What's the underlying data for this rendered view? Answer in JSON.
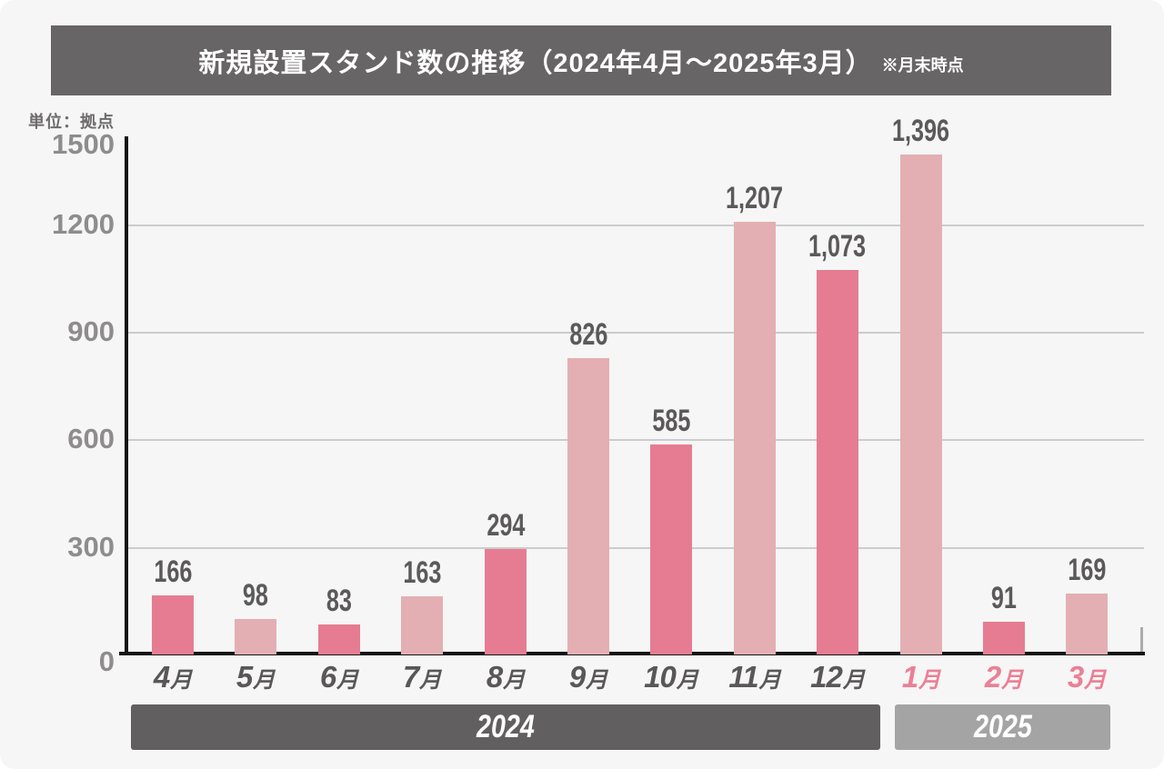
{
  "title": {
    "text": "新規設置スタンド数の推移（2024年4月〜2025年3月）",
    "note": "※月末時点"
  },
  "unit_label": "単位：拠点",
  "chart_data": {
    "type": "bar",
    "title": "新規設置スタンド数の推移（2024年4月〜2025年3月）※月末時点",
    "ylabel": "単位：拠点",
    "xlabel": "",
    "ylim": [
      0,
      1500
    ],
    "y_ticks": [
      1500,
      1200,
      900,
      600,
      300,
      0
    ],
    "grid": true,
    "legend": false,
    "categories": [
      "4月",
      "5月",
      "6月",
      "7月",
      "8月",
      "9月",
      "10月",
      "11月",
      "12月",
      "1月",
      "2月",
      "3月"
    ],
    "values": [
      166,
      98,
      83,
      163,
      294,
      826,
      585,
      1207,
      1073,
      1396,
      91,
      169
    ],
    "value_labels": [
      "166",
      "98",
      "83",
      "163",
      "294",
      "826",
      "585",
      "1,207",
      "1,073",
      "1,396",
      "91",
      "169"
    ],
    "category_years": [
      2024,
      2024,
      2024,
      2024,
      2024,
      2024,
      2024,
      2024,
      2024,
      2025,
      2025,
      2025
    ],
    "year_bands": [
      {
        "label": "2024"
      },
      {
        "label": "2025"
      }
    ]
  },
  "colors": {
    "bar_dark_pink": "#e67c92",
    "bar_light_pink": "#e3afb3",
    "month_label_2024": "#595757",
    "month_label_2025": "#ec7f95",
    "title_banner_bg": "#676565",
    "band_2024_bg": "#615f5f",
    "band_2025_bg": "#a5a4a4",
    "axis": "#151515",
    "gridline": "#cbcdcc",
    "y_tick_text": "#8e8c8c",
    "value_text": "#5b5959",
    "background": "#f5f6f5"
  }
}
